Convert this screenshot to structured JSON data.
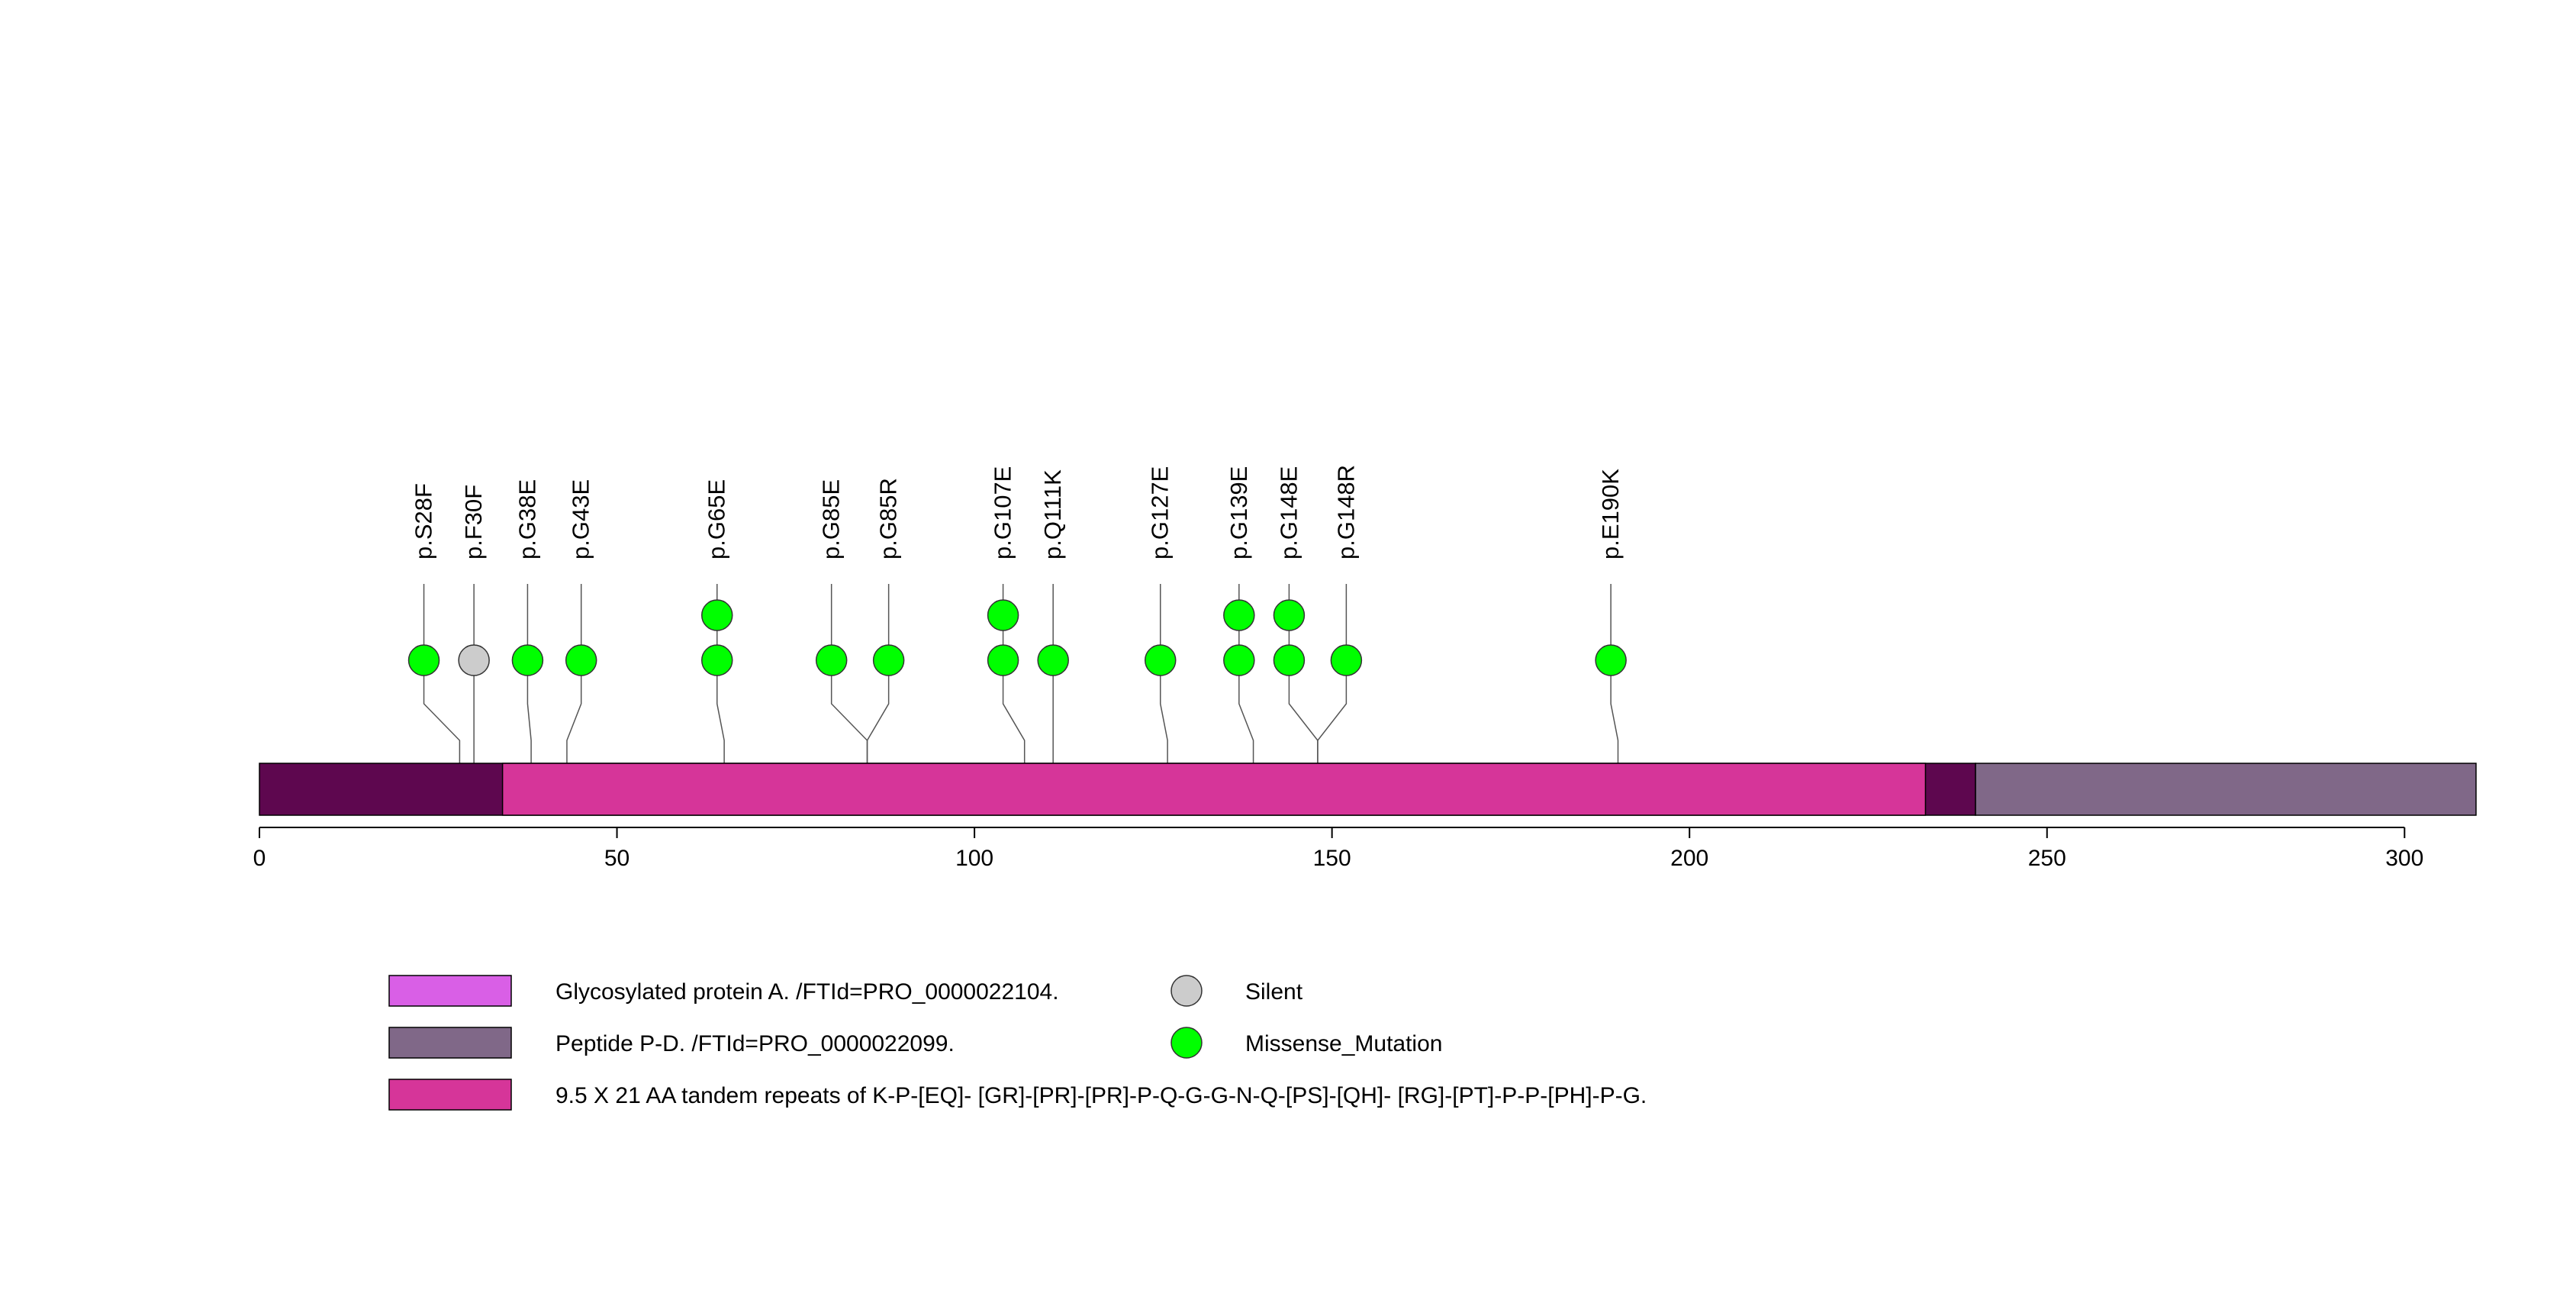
{
  "chart_data": {
    "type": "lollipop",
    "title": "",
    "xlabel": "",
    "ylabel": "",
    "xlim": [
      0,
      310
    ],
    "x_ticks": [
      0,
      50,
      100,
      150,
      200,
      250,
      300
    ],
    "protein_length": 310,
    "colors": {
      "glycosylated": "#d95fe6",
      "peptide_pd": "#806888",
      "tandem_repeats": "#d63599",
      "overlap_dark": "#5e074f",
      "silent": "#cccccc",
      "missense": "#00ff00"
    },
    "domains": [
      {
        "name": "Glycosylated protein A. /FTId=PRO_0000022104.",
        "start": 0,
        "end": 240,
        "color_key": "glycosylated"
      },
      {
        "name": "Peptide P-D. /FTId=PRO_0000022099.",
        "start": 240,
        "end": 310,
        "color_key": "peptide_pd"
      },
      {
        "name": "9.5 X 21 AA tandem repeats of K-P-[EQ]- [GR]-[PR]-[PR]-P-Q-G-G-N-Q-[PS]-[QH]- [RG]-[PT]-P-P-[PH]-P-G.",
        "start": 34,
        "end": 233,
        "color_key": "tandem_repeats"
      }
    ],
    "mutations": [
      {
        "label": "p.S28F",
        "position": 28,
        "display_pos": 23,
        "count": 1,
        "type": "Missense_Mutation"
      },
      {
        "label": "p.F30F",
        "position": 30,
        "display_pos": 30,
        "count": 1,
        "type": "Silent"
      },
      {
        "label": "p.G38E",
        "position": 38,
        "display_pos": 37.5,
        "count": 1,
        "type": "Missense_Mutation"
      },
      {
        "label": "p.G43E",
        "position": 43,
        "display_pos": 45,
        "count": 1,
        "type": "Missense_Mutation"
      },
      {
        "label": "p.G65E",
        "position": 65,
        "display_pos": 64,
        "count": 2,
        "type": "Missense_Mutation"
      },
      {
        "label": "p.G85E",
        "position": 85,
        "display_pos": 80,
        "count": 1,
        "type": "Missense_Mutation"
      },
      {
        "label": "p.G85R",
        "position": 85,
        "display_pos": 88,
        "count": 1,
        "type": "Missense_Mutation"
      },
      {
        "label": "p.G107E",
        "position": 107,
        "display_pos": 104,
        "count": 2,
        "type": "Missense_Mutation"
      },
      {
        "label": "p.Q111K",
        "position": 111,
        "display_pos": 111,
        "count": 1,
        "type": "Missense_Mutation"
      },
      {
        "label": "p.G127E",
        "position": 127,
        "display_pos": 126,
        "count": 1,
        "type": "Missense_Mutation"
      },
      {
        "label": "p.G139E",
        "position": 139,
        "display_pos": 137,
        "count": 2,
        "type": "Missense_Mutation"
      },
      {
        "label": "p.G148E",
        "position": 148,
        "display_pos": 144,
        "count": 2,
        "type": "Missense_Mutation"
      },
      {
        "label": "p.G148R",
        "position": 148,
        "display_pos": 152,
        "count": 1,
        "type": "Missense_Mutation"
      },
      {
        "label": "p.E190K",
        "position": 190,
        "display_pos": 189,
        "count": 1,
        "type": "Missense_Mutation"
      }
    ],
    "legend": {
      "placement": "bottom",
      "domain_entries": [
        {
          "label": "Glycosylated protein A. /FTId=PRO_0000022104.",
          "color_key": "glycosylated"
        },
        {
          "label": "Peptide P-D. /FTId=PRO_0000022099.",
          "color_key": "peptide_pd"
        },
        {
          "label": "9.5 X 21 AA tandem repeats of K-P-[EQ]- [GR]-[PR]-[PR]-P-Q-G-G-N-Q-[PS]-[QH]- [RG]-[PT]-P-P-[PH]-P-G.",
          "color_key": "tandem_repeats"
        }
      ],
      "mutation_entries": [
        {
          "label": "Silent",
          "color_key": "silent"
        },
        {
          "label": "Missense_Mutation",
          "color_key": "missense"
        }
      ]
    }
  }
}
